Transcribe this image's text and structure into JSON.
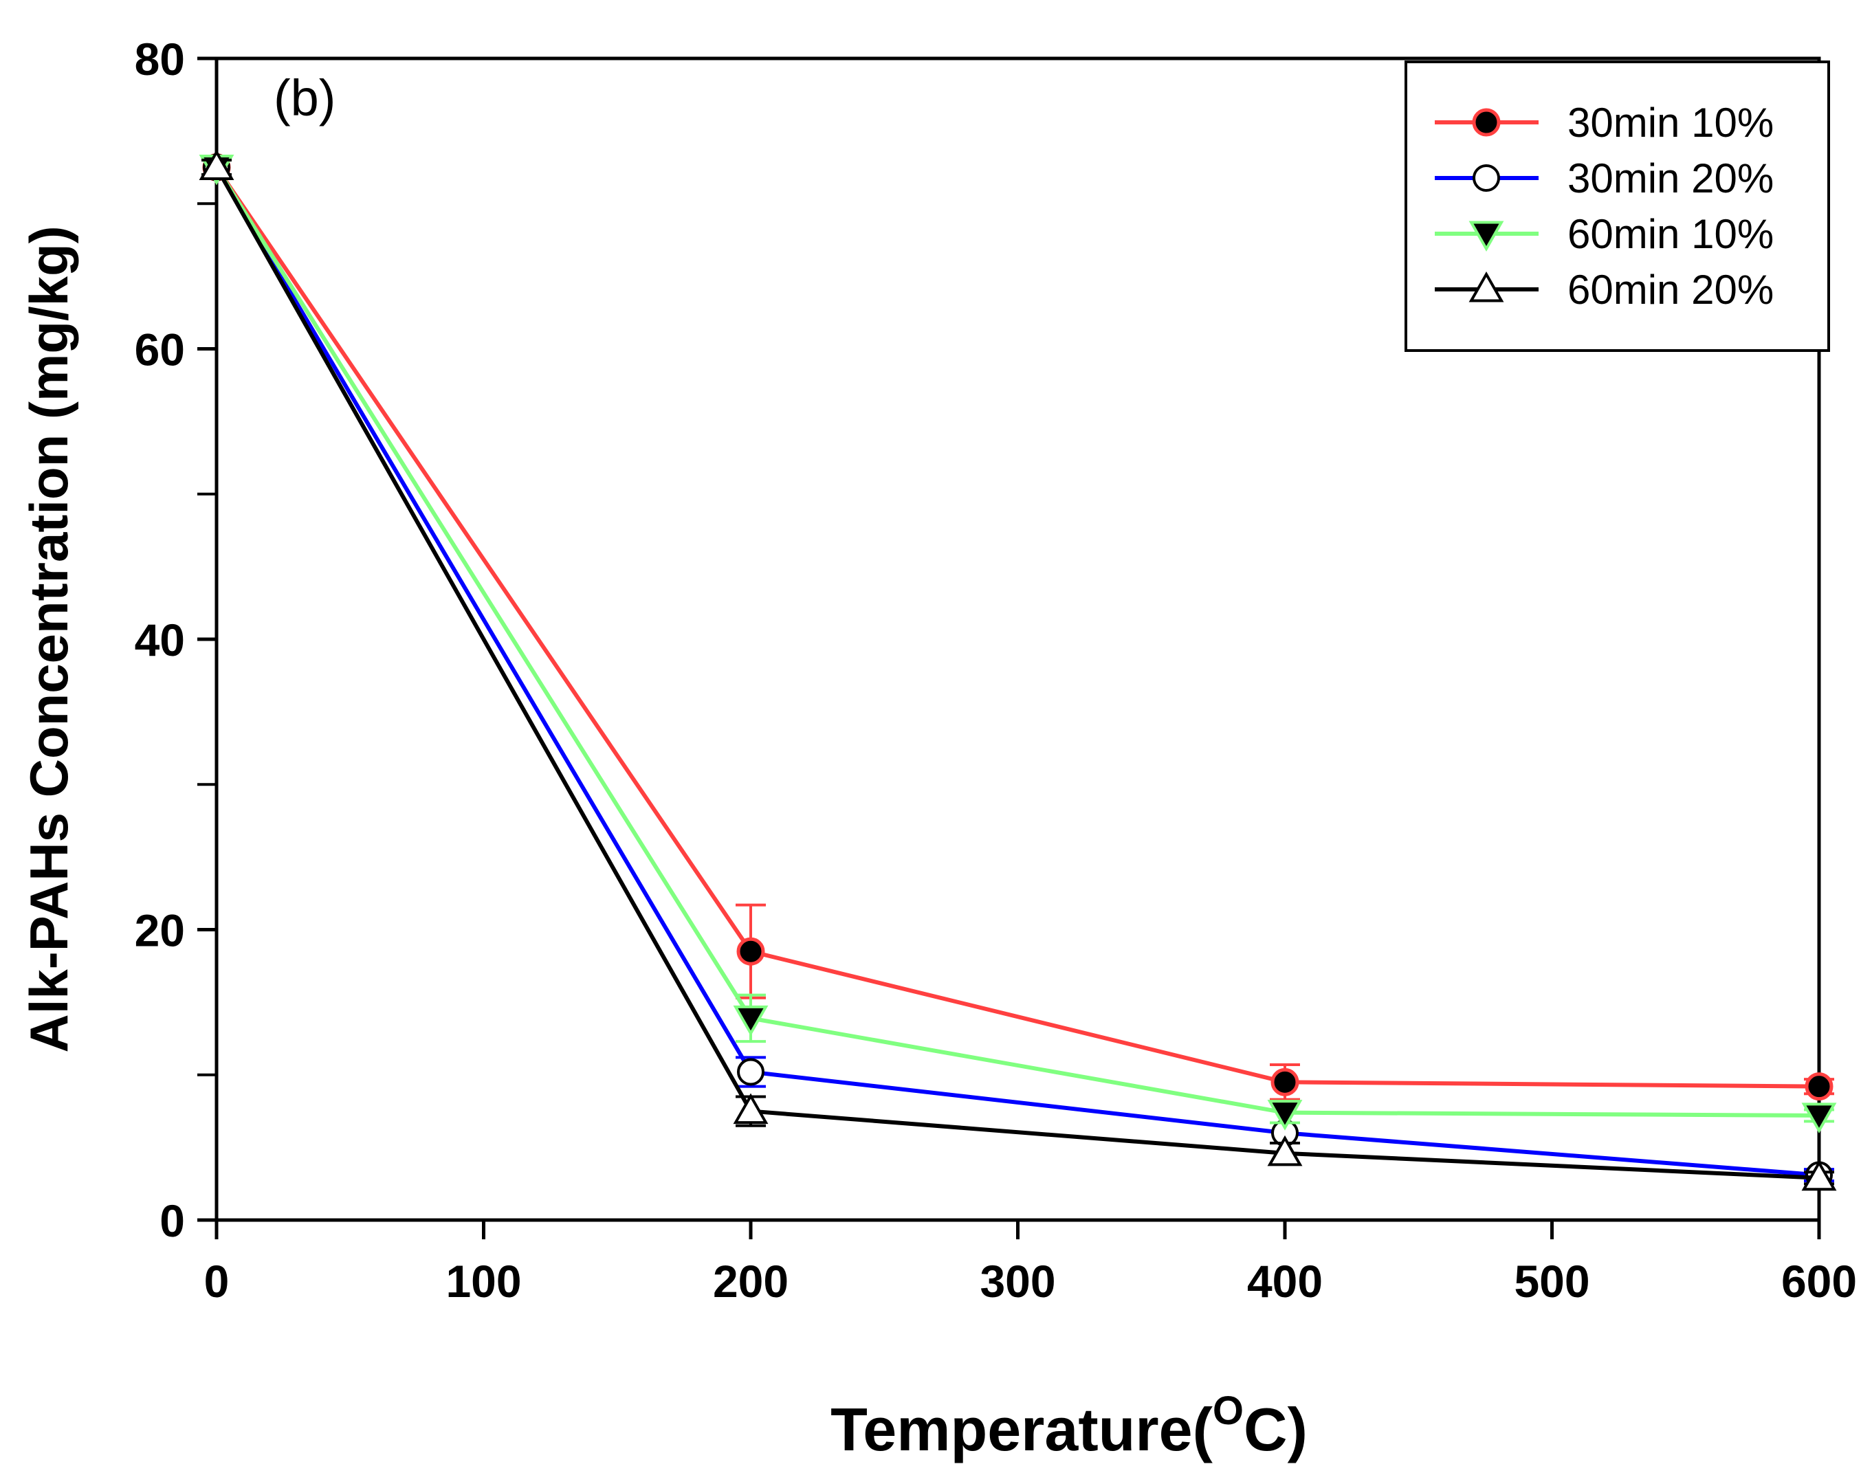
{
  "chart_data": {
    "type": "line",
    "panel_label": "(b)",
    "xlabel": "Temperature(",
    "xlabel_superscript": "O",
    "xlabel_suffix": "C)",
    "ylabel": "Alk-PAHs Concentration (mg/kg)",
    "xlim": [
      0,
      600
    ],
    "ylim": [
      0,
      80
    ],
    "x_ticks": [
      "0",
      "100",
      "200",
      "300",
      "400",
      "500",
      "600"
    ],
    "y_ticks": [
      "0",
      "20",
      "40",
      "60",
      "80"
    ],
    "legend_position": "top-right",
    "x": [
      0,
      200,
      400,
      600
    ],
    "series": [
      {
        "name": "30min 10%",
        "color": "#ff4040",
        "marker": "filled-circle",
        "values": [
          72.5,
          18.5,
          9.5,
          9.2
        ],
        "errors": [
          0.5,
          3.2,
          1.2,
          0.5
        ]
      },
      {
        "name": "30min 20%",
        "color": "#0000ff",
        "marker": "open-circle",
        "values": [
          72.5,
          10.2,
          6.0,
          3.1
        ],
        "errors": [
          0.5,
          1.0,
          0.7,
          0.4
        ]
      },
      {
        "name": "60min 10%",
        "color": "#80ff80",
        "marker": "filled-triangle-down",
        "values": [
          72.5,
          13.9,
          7.4,
          7.2
        ],
        "errors": [
          0.5,
          1.6,
          0.7,
          0.4
        ]
      },
      {
        "name": "60min 20%",
        "color": "#000000",
        "marker": "open-triangle-up",
        "values": [
          72.5,
          7.5,
          4.6,
          2.9
        ],
        "errors": [
          0.5,
          1.0,
          0.7,
          0.4
        ]
      }
    ]
  }
}
